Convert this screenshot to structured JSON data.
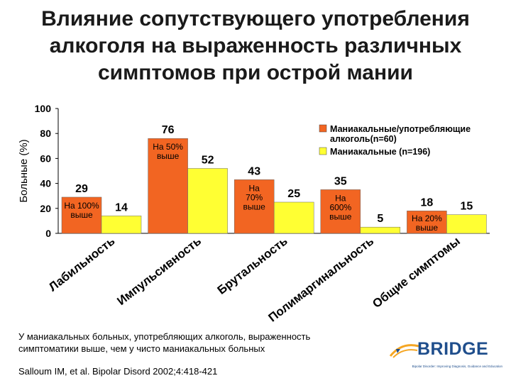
{
  "title_lines": [
    "Влияние сопутствующего употребления",
    "алкоголя на выраженность различных",
    "симптомов при острой мании"
  ],
  "chart_data": {
    "type": "bar",
    "ylabel": "Больные (%)",
    "ylim": [
      0,
      100
    ],
    "yticks": [
      "0",
      "20",
      "40",
      "60",
      "80",
      "100"
    ],
    "categories": [
      "Лабильность",
      "Импульсивность",
      "Брутальность",
      "Полимаргинальность",
      "Общие симптомы"
    ],
    "series": [
      {
        "name": "Маниакальные/употребляющие алкоголь(n=60)",
        "color": "#f26522",
        "values": [
          29,
          76,
          43,
          35,
          18
        ]
      },
      {
        "name": "Маниакальные (n=196)",
        "color": "#ffff33",
        "values": [
          14,
          52,
          25,
          5,
          15
        ]
      }
    ],
    "value_labels": [
      [
        "29",
        "76",
        "43",
        "35",
        "18"
      ],
      [
        "14",
        "52",
        "25",
        "5",
        "15"
      ]
    ],
    "annotations": [
      [
        "На 100%",
        "выше"
      ],
      [
        "На 50%",
        "выше"
      ],
      [
        "На",
        "70%",
        "выше"
      ],
      [
        "На",
        "600%",
        "выше"
      ],
      [
        "На 20%",
        "выше"
      ]
    ],
    "legend": {
      "position": "top-right",
      "entries": [
        [
          "Маниакальные/употребляющие",
          "алкоголь(n=60)"
        ],
        [
          "Маниакальные  (n=196)"
        ]
      ]
    }
  },
  "note_lines": [
    "У маниакальных больных, употребляющих алкоголь, выраженность",
    "симптоматики выше,  чем у чисто маниакальных больных"
  ],
  "citation": "Salloum IM, et al. Bipolar Disord 2002;4:418-421",
  "logo": {
    "name": "BRIDGE",
    "tagline": "Bipolar Disorder: Improving Diagnosis, Guidance and Education"
  },
  "colors": {
    "orange": "#f26522",
    "yellow": "#ffff33",
    "logo_blue": "#1f4e8c",
    "logo_orange": "#f5a623"
  }
}
